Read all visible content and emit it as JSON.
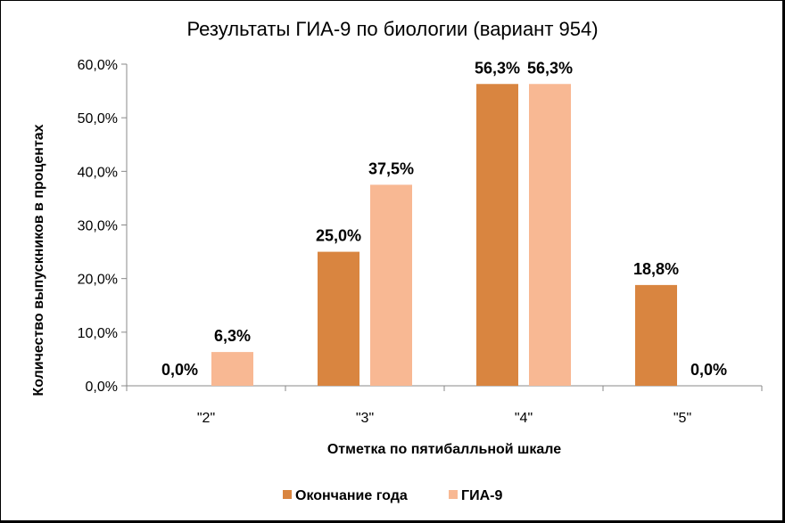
{
  "chart_data": {
    "type": "bar",
    "title": "Результаты ГИА-9 по биологии (вариант 954)",
    "xlabel": "Отметка по пятибалльной шкале",
    "ylabel": "Количество выпускников в процентах",
    "categories": [
      "\"2\"",
      "\"3\"",
      "\"4\"",
      "\"5\""
    ],
    "series": [
      {
        "name": "Окончание года",
        "values": [
          0.0,
          25.0,
          56.3,
          18.8
        ],
        "labels": [
          "0,0%",
          "25,0%",
          "56,3%",
          "18,8%"
        ],
        "color": "#D98540"
      },
      {
        "name": "ГИА-9",
        "values": [
          6.3,
          37.5,
          56.3,
          0.0
        ],
        "labels": [
          "6,3%",
          "37,5%",
          "56,3%",
          "0,0%"
        ],
        "color": "#F8B893"
      }
    ],
    "ylim": [
      0,
      60
    ],
    "yticks": [
      "0,0%",
      "10,0%",
      "20,0%",
      "30,0%",
      "40,0%",
      "50,0%",
      "60,0%"
    ],
    "grid": false,
    "legend_position": "bottom"
  }
}
